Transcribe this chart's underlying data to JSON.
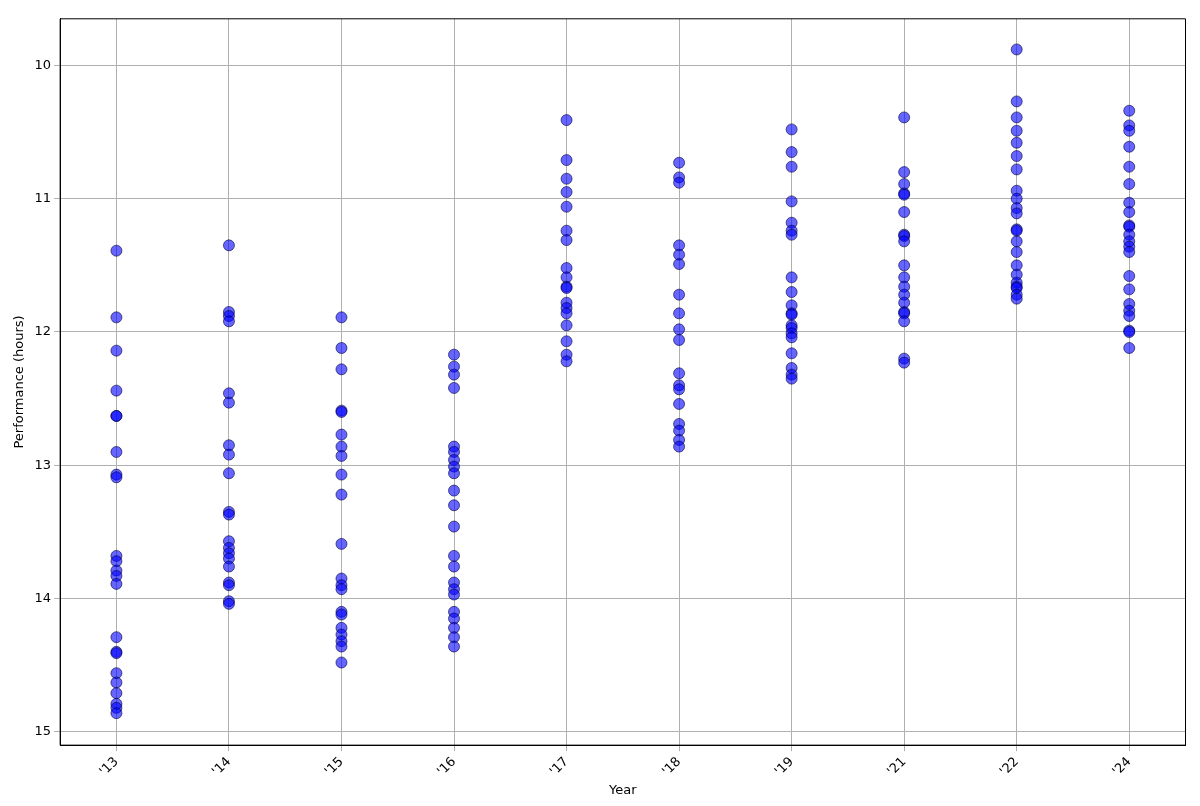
{
  "chart_data": {
    "type": "scatter",
    "xlabel": "Year",
    "ylabel": "Performance (hours)",
    "categories": [
      "'13",
      "'14",
      "'15",
      "'16",
      "'17",
      "'18",
      "'19",
      "'21",
      "'22",
      "'24"
    ],
    "ylim": [
      15.1,
      9.65
    ],
    "yticks": [
      10,
      11,
      12,
      13,
      14,
      15
    ],
    "grid": true,
    "marker": "circle",
    "series": [
      {
        "color": "#0000ff",
        "x": [
          "'13",
          "'13",
          "'13",
          "'13",
          "'13",
          "'13",
          "'13",
          "'13",
          "'13",
          "'13",
          "'13",
          "'13",
          "'13",
          "'13",
          "'13",
          "'13",
          "'13",
          "'13",
          "'13",
          "'13",
          "'13",
          "'13",
          "'13",
          "'14",
          "'14",
          "'14",
          "'14",
          "'14",
          "'14",
          "'14",
          "'14",
          "'14",
          "'14",
          "'14",
          "'14",
          "'14",
          "'14",
          "'14",
          "'14",
          "'14",
          "'14",
          "'14",
          "'14",
          "'15",
          "'15",
          "'15",
          "'15",
          "'15",
          "'15",
          "'15",
          "'15",
          "'15",
          "'15",
          "'15",
          "'15",
          "'15",
          "'15",
          "'15",
          "'15",
          "'15",
          "'15",
          "'15",
          "'15",
          "'15",
          "'16",
          "'16",
          "'16",
          "'16",
          "'16",
          "'16",
          "'16",
          "'16",
          "'16",
          "'16",
          "'16",
          "'16",
          "'16",
          "'16",
          "'16",
          "'16",
          "'16",
          "'16",
          "'16",
          "'16",
          "'16",
          "'16",
          "'17",
          "'17",
          "'17",
          "'17",
          "'17",
          "'17",
          "'17",
          "'17",
          "'17",
          "'17",
          "'17",
          "'17",
          "'17",
          "'17",
          "'17",
          "'17",
          "'17",
          "'17",
          "'18",
          "'18",
          "'18",
          "'18",
          "'18",
          "'18",
          "'18",
          "'18",
          "'18",
          "'18",
          "'18",
          "'18",
          "'18",
          "'18",
          "'18",
          "'18",
          "'18",
          "'18",
          "'19",
          "'19",
          "'19",
          "'19",
          "'19",
          "'19",
          "'19",
          "'19",
          "'19",
          "'19",
          "'19",
          "'19",
          "'19",
          "'19",
          "'19",
          "'19",
          "'19",
          "'19",
          "'19",
          "'19",
          "'21",
          "'21",
          "'21",
          "'21",
          "'21",
          "'21",
          "'21",
          "'21",
          "'21",
          "'21",
          "'21",
          "'21",
          "'21",
          "'21",
          "'21",
          "'21",
          "'21",
          "'21",
          "'21",
          "'22",
          "'22",
          "'22",
          "'22",
          "'22",
          "'22",
          "'22",
          "'22",
          "'22",
          "'22",
          "'22",
          "'22",
          "'22",
          "'22",
          "'22",
          "'22",
          "'22",
          "'22",
          "'22",
          "'22",
          "'22",
          "'22",
          "'24",
          "'24",
          "'24",
          "'24",
          "'24",
          "'24",
          "'24",
          "'24",
          "'24",
          "'24",
          "'24",
          "'24",
          "'24",
          "'24",
          "'24",
          "'24",
          "'24",
          "'24",
          "'24",
          "'24",
          "'24",
          "'24"
        ],
        "values": [
          11.39,
          11.89,
          12.14,
          12.44,
          12.63,
          12.63,
          12.9,
          13.07,
          13.09,
          13.68,
          13.72,
          13.79,
          13.83,
          13.89,
          14.29,
          14.4,
          14.41,
          14.56,
          14.63,
          14.71,
          14.79,
          14.82,
          14.86,
          11.35,
          11.85,
          11.88,
          11.92,
          12.46,
          12.53,
          12.85,
          12.92,
          13.06,
          13.35,
          13.37,
          13.57,
          13.62,
          13.66,
          13.7,
          13.76,
          13.88,
          13.9,
          14.02,
          14.04,
          11.89,
          12.12,
          12.28,
          12.59,
          12.6,
          12.77,
          12.86,
          12.93,
          13.07,
          13.22,
          13.59,
          13.85,
          13.9,
          13.93,
          14.1,
          14.12,
          14.22,
          14.27,
          14.32,
          14.36,
          14.48,
          12.17,
          12.26,
          12.32,
          12.42,
          12.86,
          12.9,
          12.96,
          13.01,
          13.06,
          13.19,
          13.3,
          13.46,
          13.68,
          13.76,
          13.88,
          13.93,
          13.97,
          14.1,
          14.15,
          14.22,
          14.29,
          14.36,
          10.41,
          10.71,
          10.85,
          10.95,
          11.06,
          11.24,
          11.31,
          11.52,
          11.59,
          11.66,
          11.67,
          11.78,
          11.82,
          11.86,
          11.95,
          12.07,
          12.17,
          12.22,
          10.73,
          10.84,
          10.88,
          11.35,
          11.42,
          11.49,
          11.72,
          11.86,
          11.98,
          12.06,
          12.31,
          12.4,
          12.43,
          12.54,
          12.69,
          12.74,
          12.81,
          12.86,
          10.48,
          10.65,
          10.76,
          11.02,
          11.18,
          11.24,
          11.27,
          11.59,
          11.7,
          11.8,
          11.86,
          11.87,
          11.95,
          11.97,
          12.01,
          12.04,
          12.16,
          12.27,
          12.32,
          12.35,
          10.39,
          10.8,
          10.89,
          10.96,
          10.97,
          11.1,
          11.27,
          11.28,
          11.32,
          11.5,
          11.59,
          11.66,
          11.72,
          11.78,
          11.85,
          11.86,
          11.92,
          12.2,
          12.23,
          9.88,
          10.27,
          10.39,
          10.49,
          10.58,
          10.68,
          10.78,
          10.94,
          11.0,
          11.07,
          11.11,
          11.23,
          11.24,
          11.32,
          11.4,
          11.5,
          11.57,
          11.63,
          11.66,
          11.67,
          11.72,
          11.75,
          10.34,
          10.45,
          10.49,
          10.61,
          10.76,
          10.89,
          11.03,
          11.1,
          11.2,
          11.21,
          11.27,
          11.32,
          11.36,
          11.4,
          11.58,
          11.68,
          11.79,
          11.84,
          11.88,
          11.99,
          12.0,
          12.12
        ]
      }
    ]
  }
}
